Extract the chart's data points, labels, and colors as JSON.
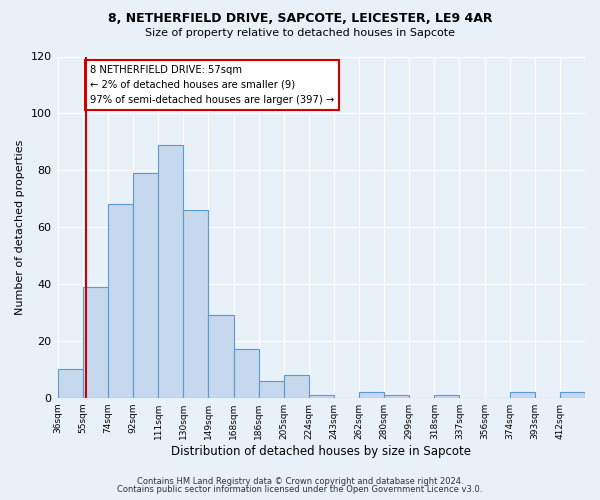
{
  "title1": "8, NETHERFIELD DRIVE, SAPCOTE, LEICESTER, LE9 4AR",
  "title2": "Size of property relative to detached houses in Sapcote",
  "xlabel": "Distribution of detached houses by size in Sapcote",
  "ylabel": "Number of detached properties",
  "bin_labels": [
    "36sqm",
    "55sqm",
    "74sqm",
    "92sqm",
    "111sqm",
    "130sqm",
    "149sqm",
    "168sqm",
    "186sqm",
    "205sqm",
    "224sqm",
    "243sqm",
    "262sqm",
    "280sqm",
    "299sqm",
    "318sqm",
    "337sqm",
    "356sqm",
    "374sqm",
    "393sqm",
    "412sqm"
  ],
  "bar_heights": [
    10,
    39,
    68,
    79,
    89,
    66,
    29,
    17,
    6,
    8,
    1,
    0,
    2,
    1,
    0,
    1,
    0,
    0,
    2,
    0,
    2
  ],
  "bar_color": "#c5d8ed",
  "bar_edge_color": "#5b9bd5",
  "vline_after_bar": 1,
  "vline_color": "#cc0000",
  "annotation_text": "8 NETHERFIELD DRIVE: 57sqm\n← 2% of detached houses are smaller (9)\n97% of semi-detached houses are larger (397) →",
  "annotation_box_color": "#ffffff",
  "annotation_box_edge": "#cc0000",
  "ylim": [
    0,
    120
  ],
  "yticks": [
    0,
    20,
    40,
    60,
    80,
    100,
    120
  ],
  "footnote1": "Contains HM Land Registry data © Crown copyright and database right 2024.",
  "footnote2": "Contains public sector information licensed under the Open Government Licence v3.0.",
  "bg_color": "#e8f0f8",
  "plot_bg_color": "#e8f0f8",
  "grid_color": "#ffffff"
}
